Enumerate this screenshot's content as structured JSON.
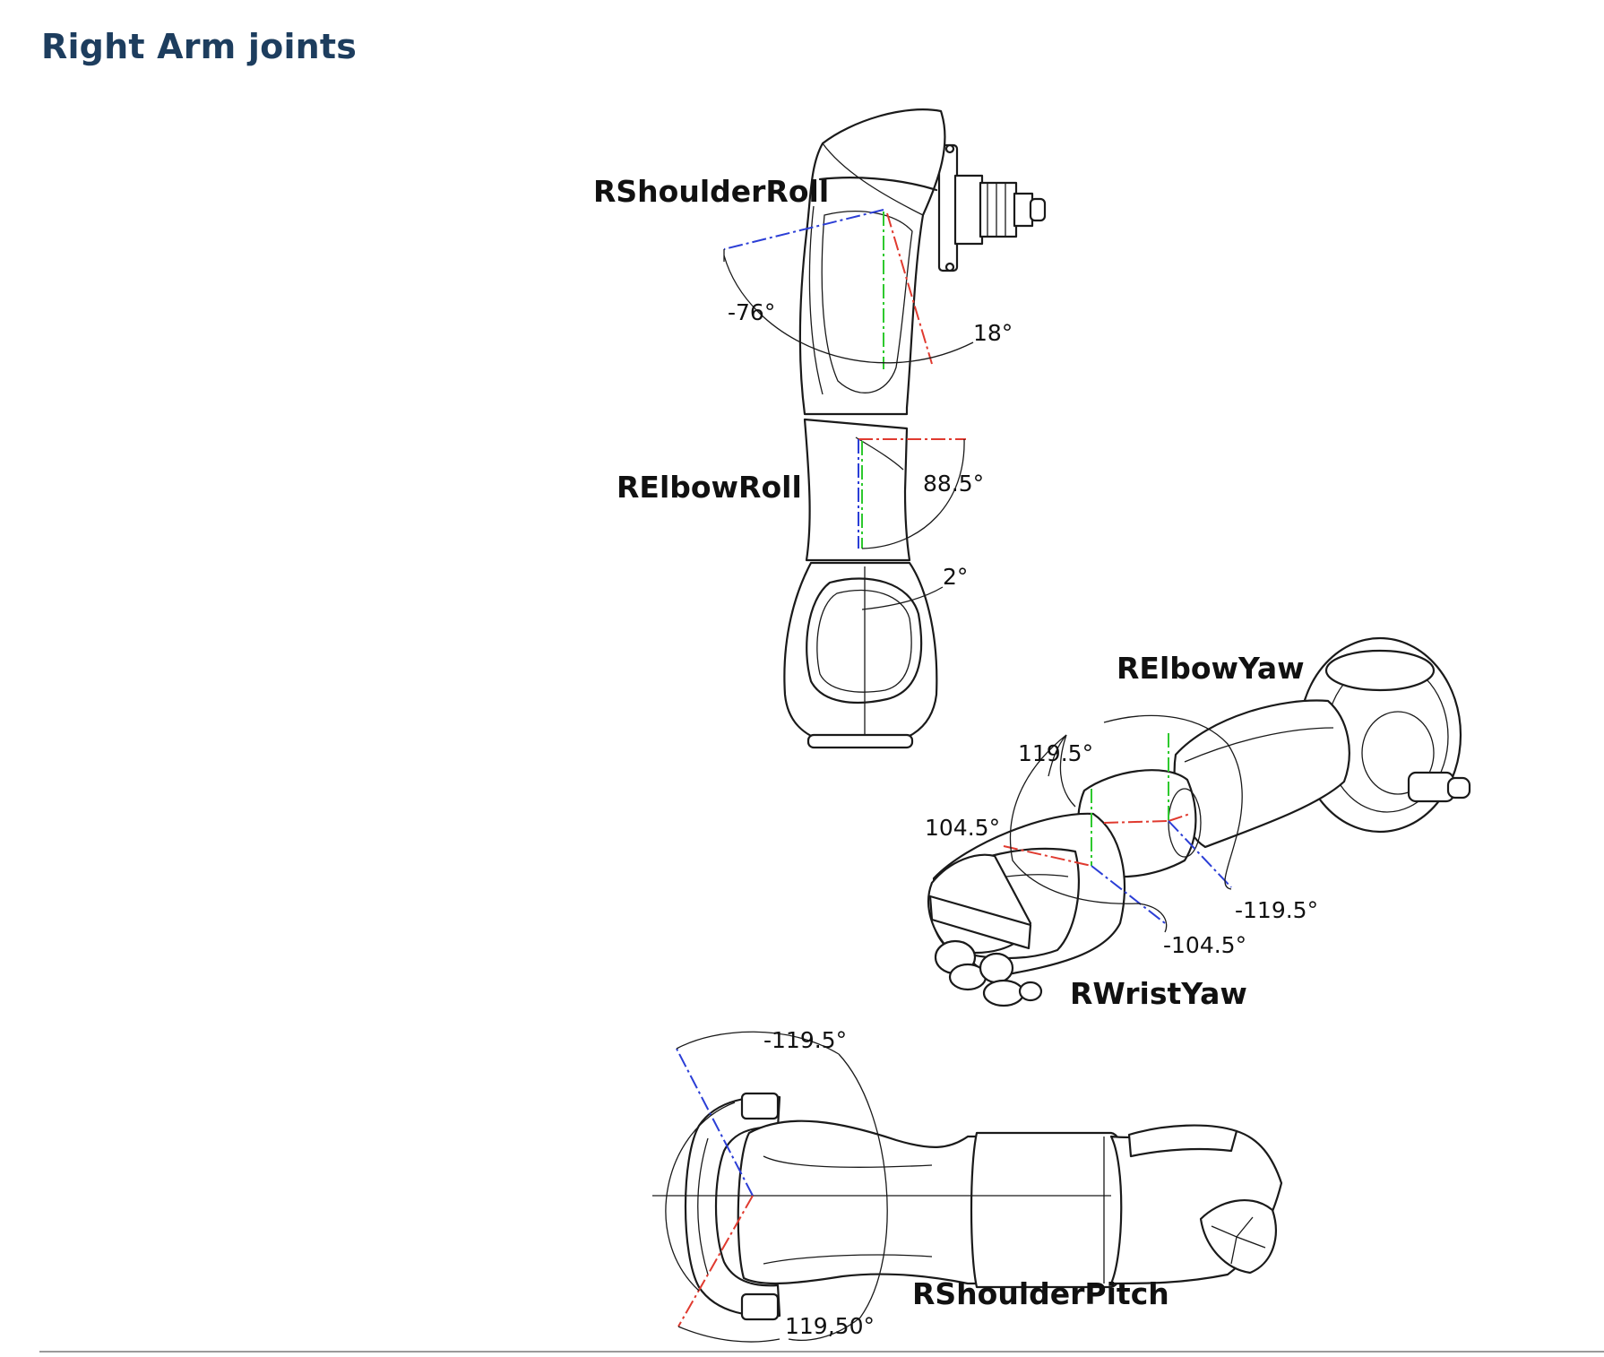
{
  "heading": "Right Arm joints",
  "colors": {
    "heading": "#1d3d5e",
    "axis_red": "#e03a2f",
    "axis_blue": "#2b3ed6",
    "axis_green": "#2ec92e",
    "rule": "#9a9a9a"
  },
  "views": {
    "shoulder_roll": {
      "label": "RShoulderRoll",
      "min": "-76°",
      "max": "18°"
    },
    "elbow_roll": {
      "label": "RElbowRoll",
      "max": "88.5°",
      "min": "2°"
    },
    "elbow_yaw_wrist_yaw": {
      "elbow_yaw_label": "RElbowYaw",
      "wrist_yaw_label": "RWristYaw",
      "elbow_yaw_max": "119.5°",
      "wrist_yaw_max": "104.5°",
      "elbow_yaw_min": "-119.5°",
      "wrist_yaw_min": "-104.5°"
    },
    "shoulder_pitch": {
      "label": "RShoulderPitch",
      "min": "-119.5°",
      "max": "119,50°"
    }
  }
}
